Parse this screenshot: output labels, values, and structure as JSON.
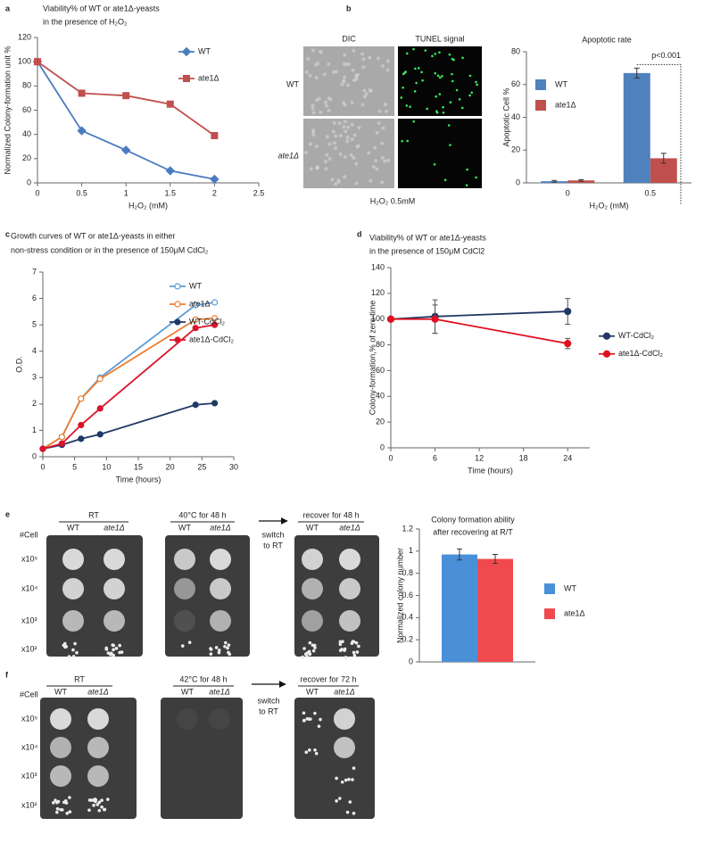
{
  "panel_labels": [
    "a",
    "b",
    "c",
    "d",
    "e",
    "f"
  ],
  "micrographs": {
    "columns": [
      "DIC",
      "TUNEL signal"
    ],
    "rows": [
      "WT",
      "ate1Δ"
    ],
    "caption": "H₂O₂ 0.5mM"
  },
  "plates": [
    {
      "cell_header": "#Cell",
      "dilutions": [
        "x10⁵",
        "x10⁴",
        "x10³",
        "x10²"
      ],
      "conditions": [
        {
          "title": "RT",
          "strains": [
            "WT",
            "ate1Δ"
          ]
        },
        {
          "title": "40°C for 48 h",
          "strains": [
            "WT",
            "ate1Δ"
          ]
        },
        {
          "title": "recover for 48 h",
          "strains": [
            "WT",
            "ate1Δ"
          ]
        }
      ],
      "transition": [
        "switch",
        "to RT"
      ]
    },
    {
      "cell_header": "#Cell",
      "dilutions": [
        "x10⁵",
        "x10⁴",
        "x10³",
        "x10²"
      ],
      "conditions": [
        {
          "title": "RT",
          "strains": [
            "WT",
            "ate1Δ"
          ]
        },
        {
          "title": "42°C for 48 h",
          "strains": [
            "WT",
            "ate1Δ"
          ]
        },
        {
          "title": "recover for 72 h",
          "strains": [
            "WT",
            "ate1Δ"
          ]
        }
      ],
      "transition": [
        "switch",
        "to RT"
      ]
    }
  ],
  "chart_data": [
    {
      "type": "line",
      "title": [
        "Viability% of WT or ate1Δ-yeasts",
        "in the presence of H₂O₂"
      ],
      "x_label": "H₂O₂ (mM)",
      "y_label": "Normalized Colony-formation unit %",
      "x": [
        0,
        0.5,
        1,
        1.5,
        2
      ],
      "series": [
        {
          "name": "WT",
          "color": "#4a7cc0",
          "marker": "diamond",
          "values": [
            100,
            43,
            27,
            10,
            3
          ]
        },
        {
          "name": "ate1Δ",
          "color": "#c0504d",
          "marker": "square",
          "values": [
            100,
            74,
            72,
            65,
            39
          ]
        }
      ],
      "xlim": [
        0,
        2.5
      ],
      "xticks": [
        0,
        0.5,
        1,
        1.5,
        2,
        2.5
      ],
      "ylim": [
        0,
        120
      ],
      "yticks": [
        0,
        20,
        40,
        60,
        80,
        100,
        120
      ],
      "grid": false,
      "legend": "upper right"
    },
    {
      "type": "bar",
      "title": [
        "Apoptotic rate"
      ],
      "x_label": "H₂O₂ (mM)",
      "y_label": "Apoptotic Cell %",
      "categories": [
        "0",
        "0.5"
      ],
      "series": [
        {
          "name": "WT",
          "color": "#4f81bd",
          "values": [
            1,
            67
          ],
          "errors": [
            0.5,
            3
          ]
        },
        {
          "name": "ate1Δ",
          "color": "#c0504d",
          "values": [
            1.5,
            15
          ],
          "errors": [
            0.5,
            3
          ]
        }
      ],
      "annotation": "p<0.001",
      "ylim": [
        0,
        80
      ],
      "yticks": [
        0,
        20,
        40,
        60,
        80
      ],
      "grid": false,
      "legend": "upper left"
    },
    {
      "type": "line",
      "title": [
        "Growth curves of WT or ate1Δ-yeasts in either",
        "non-stress condition or in the presence of 150μM CdCl₂"
      ],
      "x_label": "Time (hours)",
      "y_label": "O.D.",
      "x": [
        0,
        3,
        6,
        9,
        24,
        27
      ],
      "series": [
        {
          "name": "WT",
          "color": "#5b9bd5",
          "marker": "open-circle",
          "values": [
            0.3,
            0.75,
            2.2,
            3.0,
            5.75,
            5.85
          ]
        },
        {
          "name": "ate1Δ",
          "color": "#ed7d31",
          "marker": "open-circle",
          "values": [
            0.3,
            0.75,
            2.2,
            2.95,
            5.2,
            5.25
          ]
        },
        {
          "name": "WT-CdCl₂",
          "color": "#1f3864",
          "marker": "circle",
          "values": [
            0.3,
            0.45,
            0.68,
            0.85,
            1.97,
            2.03
          ]
        },
        {
          "name": "ate1Δ-CdCl₂",
          "color": "#d9142b",
          "marker": "circle",
          "values": [
            0.3,
            0.5,
            1.2,
            1.83,
            4.88,
            5.0
          ]
        }
      ],
      "xlim": [
        0,
        30
      ],
      "xticks": [
        0,
        5,
        10,
        15,
        20,
        25,
        30
      ],
      "ylim": [
        0,
        7
      ],
      "yticks": [
        0,
        1,
        2,
        3,
        4,
        5,
        6,
        7
      ],
      "grid": false,
      "legend": "upper right"
    },
    {
      "type": "line",
      "title": [
        "Viability% of WT or ate1Δ-yeasts",
        "in the presence of 150μM CdCl2"
      ],
      "x_label": "Time (hours)",
      "y_label": "Colony-formation,% of zero time",
      "x": [
        0,
        6,
        24
      ],
      "series": [
        {
          "name": "WT-CdCl₂",
          "color": "#1f3864",
          "marker": "circle",
          "values": [
            100,
            102,
            106
          ],
          "errors": [
            0,
            13,
            10
          ]
        },
        {
          "name": "ate1Δ-CdCl₂",
          "color": "#e0101e",
          "marker": "circle",
          "values": [
            100,
            100,
            81
          ],
          "errors": [
            0,
            11,
            4
          ]
        }
      ],
      "xlim": [
        0,
        27
      ],
      "xticks": [
        0,
        6,
        12,
        18,
        24
      ],
      "ylim": [
        0,
        140
      ],
      "yticks": [
        0,
        20,
        40,
        60,
        80,
        100,
        120,
        140
      ],
      "grid": false,
      "legend": "right"
    },
    {
      "type": "bar",
      "title": [
        "Colony formation ability",
        "after recovering at R/T"
      ],
      "y_label": "Normalized colony number",
      "categories": [
        null
      ],
      "series": [
        {
          "name": "WT",
          "color": "#4a90d9",
          "values": [
            0.97
          ],
          "errors": [
            0.05
          ]
        },
        {
          "name": "ate1Δ",
          "color": "#f04a4f",
          "values": [
            0.93
          ],
          "errors": [
            0.04
          ]
        }
      ],
      "ylim": [
        0,
        1.2
      ],
      "yticks": [
        0,
        0.2,
        0.4,
        0.6,
        0.8,
        1,
        1.2
      ],
      "grid": false,
      "legend": "right"
    }
  ]
}
